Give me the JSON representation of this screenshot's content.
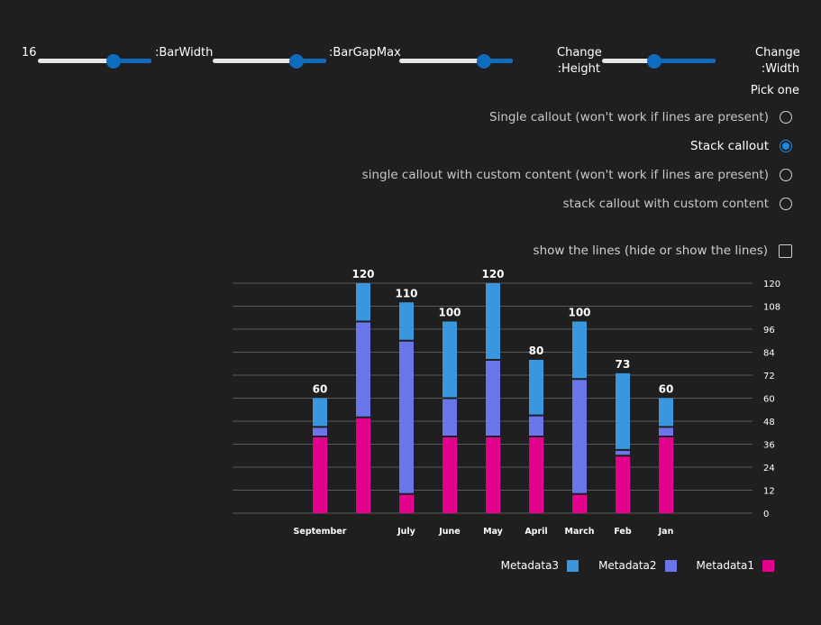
{
  "controls": {
    "bar_width_value": "16",
    "bar_width_label": ":BarWidth",
    "bar_gap_label": ":BarGapMax",
    "height_label_line1": "Change",
    "height_label_line2": ":Height",
    "width_label_line1": "Change",
    "width_label_line2": ":Width",
    "sliders": [
      {
        "name": "bar-width-slider",
        "value": 0.68
      },
      {
        "name": "bar-gap-slider",
        "value": 0.76
      },
      {
        "name": "unlabeled-slider",
        "value": 0.77
      },
      {
        "name": "height-slider",
        "value": 0.45
      }
    ]
  },
  "callout_options": {
    "title": "Pick one",
    "options": [
      {
        "label": "Single callout (won't work if lines are present)",
        "checked": false
      },
      {
        "label": "Stack callout",
        "checked": true
      },
      {
        "label": "single callout with custom content (won't work if lines are present)",
        "checked": false
      },
      {
        "label": "stack callout with custom content",
        "checked": false
      }
    ],
    "lines_checkbox": {
      "label": "show the lines (hide or show the lines)",
      "checked": false
    }
  },
  "colors": {
    "metadata1": "#e3008c",
    "metadata2": "#6975e8",
    "metadata3": "#3a96dd",
    "background": "#1f1f1f",
    "accent": "#0f6cbd"
  },
  "chart_data": {
    "type": "bar",
    "stacked": true,
    "categories": [
      "September",
      "",
      "July",
      "June",
      "May",
      "April",
      "March",
      "Feb",
      "Jan"
    ],
    "series": [
      {
        "name": "Metadata1",
        "values": [
          40,
          50,
          10,
          40,
          40,
          40,
          10,
          30,
          40
        ]
      },
      {
        "name": "Metadata2",
        "values": [
          5,
          50,
          80,
          20,
          40,
          11,
          60,
          3,
          5
        ]
      },
      {
        "name": "Metadata3",
        "values": [
          15,
          20,
          20,
          40,
          40,
          29,
          30,
          40,
          15
        ]
      }
    ],
    "totals": [
      "60",
      "120",
      "110",
      "100",
      "120",
      "80",
      "100",
      "73",
      "60"
    ],
    "y_ticks": [
      0,
      12,
      24,
      36,
      48,
      60,
      72,
      84,
      96,
      108,
      120
    ],
    "ylim": [
      0,
      120
    ],
    "y_axis_side": "right",
    "grid": true,
    "legend_position": "bottom-right",
    "legend_order": [
      "Metadata3",
      "Metadata2",
      "Metadata1"
    ]
  }
}
